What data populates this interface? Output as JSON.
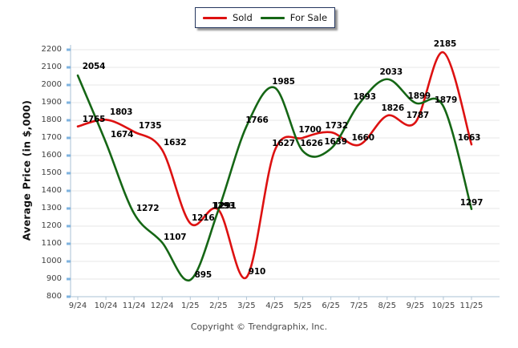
{
  "legend": {
    "items": [
      {
        "label": "Sold",
        "color": "#dd1111"
      },
      {
        "label": "For Sale",
        "color": "#156615"
      }
    ]
  },
  "y_axis": {
    "title": "Average Price (in $,000)",
    "ticks": [
      2200,
      2100,
      2000,
      1900,
      1800,
      1700,
      1600,
      1500,
      1400,
      1300,
      1200,
      1100,
      1000,
      900,
      800
    ]
  },
  "x_axis": {
    "ticks": [
      "9/24",
      "10/24",
      "11/24",
      "12/24",
      "1/25",
      "2/25",
      "3/25",
      "4/25",
      "5/25",
      "6/25",
      "7/25",
      "8/25",
      "9/25",
      "10/25",
      "11/25"
    ]
  },
  "footer": {
    "text": "Copyright © Trendgraphix, Inc."
  },
  "colors": {
    "sold": "#dd1111",
    "for_sale": "#156615",
    "grid": "#e7e7e7",
    "axis": "#a8c0d4",
    "y_tick": "#7fb3df",
    "x_tick": "#b0c4d4"
  },
  "chart_data": {
    "type": "line",
    "x": [
      "9/24",
      "10/24",
      "11/24",
      "12/24",
      "1/25",
      "2/25",
      "3/25",
      "4/25",
      "5/25",
      "6/25",
      "7/25",
      "8/25",
      "9/25",
      "10/25",
      "11/25"
    ],
    "series": [
      {
        "name": "Sold",
        "color": "#dd1111",
        "values": [
          1765,
          1803,
          1735,
          1632,
          1216,
          1293,
          910,
          1627,
          1700,
          1732,
          1660,
          1826,
          1787,
          2185,
          1663
        ]
      },
      {
        "name": "For Sale",
        "color": "#156615",
        "values": [
          2054,
          1674,
          1272,
          1107,
          895,
          1291,
          1766,
          1985,
          1626,
          1639,
          1893,
          2033,
          1899,
          1879,
          1297
        ]
      }
    ],
    "title": "",
    "xlabel": "",
    "ylabel": "Average Price (in $,000)",
    "ylim": [
      800,
      2200
    ],
    "y_tick_step": 100,
    "grid": true,
    "smooth": true,
    "legend_position": "top-center",
    "label_offsets": {
      "Sold": [
        [
          20,
          -9
        ],
        [
          19,
          -9
        ],
        [
          20,
          -7
        ],
        [
          16,
          -9
        ],
        [
          16,
          -6
        ],
        [
          6,
          -5
        ],
        [
          13,
          -7
        ],
        [
          11,
          -9
        ],
        [
          9,
          -10
        ],
        [
          7,
          -8
        ],
        [
          5,
          -9
        ],
        [
          7,
          -9
        ],
        [
          3,
          -9
        ],
        [
          2,
          -10
        ],
        [
          -3,
          -8
        ]
      ],
      "For Sale": [
        [
          20,
          -11
        ],
        [
          20,
          -10
        ],
        [
          17,
          -6
        ],
        [
          16,
          -6
        ],
        [
          16,
          -6
        ],
        [
          8,
          -5
        ],
        [
          13,
          -7
        ],
        [
          11,
          -7
        ],
        [
          11,
          -9
        ],
        [
          6,
          -8
        ],
        [
          7,
          -9
        ],
        [
          5,
          -9
        ],
        [
          5,
          -8
        ],
        [
          3,
          -8
        ],
        [
          0,
          -8
        ]
      ]
    }
  }
}
